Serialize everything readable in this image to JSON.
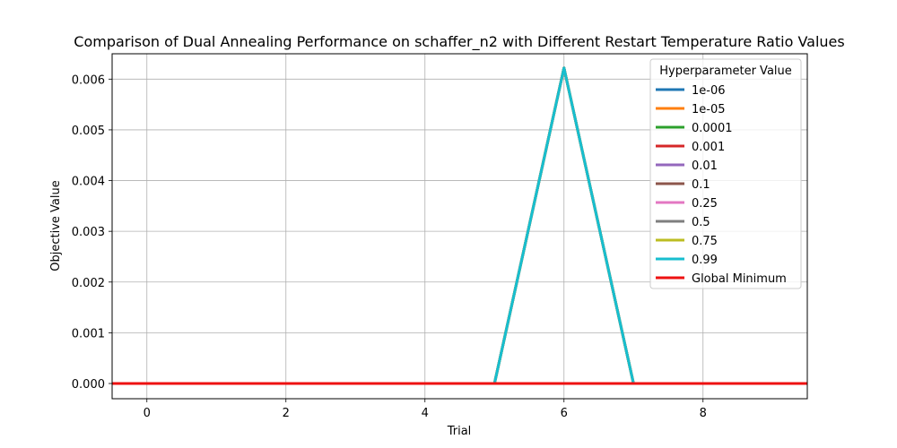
{
  "chart_data": {
    "type": "line",
    "title": "Comparison of Dual Annealing Performance on schaffer_n2 with Different Restart Temperature Ratio Values",
    "xlabel": "Trial",
    "ylabel": "Objective Value",
    "xlim": [
      -0.5,
      9.5
    ],
    "ylim": [
      -0.0003,
      0.0065
    ],
    "xticks": [
      0,
      2,
      4,
      6,
      8
    ],
    "yticks": [
      0.0,
      0.001,
      0.002,
      0.003,
      0.004,
      0.005,
      0.006
    ],
    "ytick_labels": [
      "0.000",
      "0.001",
      "0.002",
      "0.003",
      "0.004",
      "0.005",
      "0.006"
    ],
    "grid": true,
    "legend_title": "Hyperparameter Value",
    "legend_position": "top-right",
    "x": [
      0,
      1,
      2,
      3,
      4,
      5,
      6,
      7,
      8,
      9
    ],
    "series": [
      {
        "name": "1e-06",
        "color": "#1f77b4",
        "values": [
          0,
          0,
          0,
          0,
          0,
          0,
          0.00622,
          0,
          0,
          0
        ]
      },
      {
        "name": "1e-05",
        "color": "#ff7f0e",
        "values": [
          0,
          0,
          0,
          0,
          0,
          0,
          0.00622,
          0,
          0,
          0
        ]
      },
      {
        "name": "0.0001",
        "color": "#2ca02c",
        "values": [
          0,
          0,
          0,
          0,
          0,
          0,
          0.00622,
          0,
          0,
          0
        ]
      },
      {
        "name": "0.001",
        "color": "#d62728",
        "values": [
          0,
          0,
          0,
          0,
          0,
          0,
          0.00622,
          0,
          0,
          0
        ]
      },
      {
        "name": "0.01",
        "color": "#9467bd",
        "values": [
          0,
          0,
          0,
          0,
          0,
          0,
          0.00622,
          0,
          0,
          0
        ]
      },
      {
        "name": "0.1",
        "color": "#8c564b",
        "values": [
          0,
          0,
          0,
          0,
          0,
          0,
          0.00622,
          0,
          0,
          0
        ]
      },
      {
        "name": "0.25",
        "color": "#e377c2",
        "values": [
          0,
          0,
          0,
          0,
          0,
          0,
          0.00622,
          0,
          0,
          0
        ]
      },
      {
        "name": "0.5",
        "color": "#7f7f7f",
        "values": [
          0,
          0,
          0,
          0,
          0,
          0,
          0.00622,
          0,
          0,
          0
        ]
      },
      {
        "name": "0.75",
        "color": "#bcbd22",
        "values": [
          0,
          0,
          0,
          0,
          0,
          0,
          0.00622,
          0,
          0,
          0
        ]
      },
      {
        "name": "0.99",
        "color": "#17becf",
        "values": [
          0,
          0,
          0,
          0,
          0,
          0,
          0.00622,
          0,
          0,
          0
        ]
      }
    ],
    "reference_line": {
      "name": "Global Minimum",
      "color": "#ee1111",
      "y": 0
    }
  }
}
